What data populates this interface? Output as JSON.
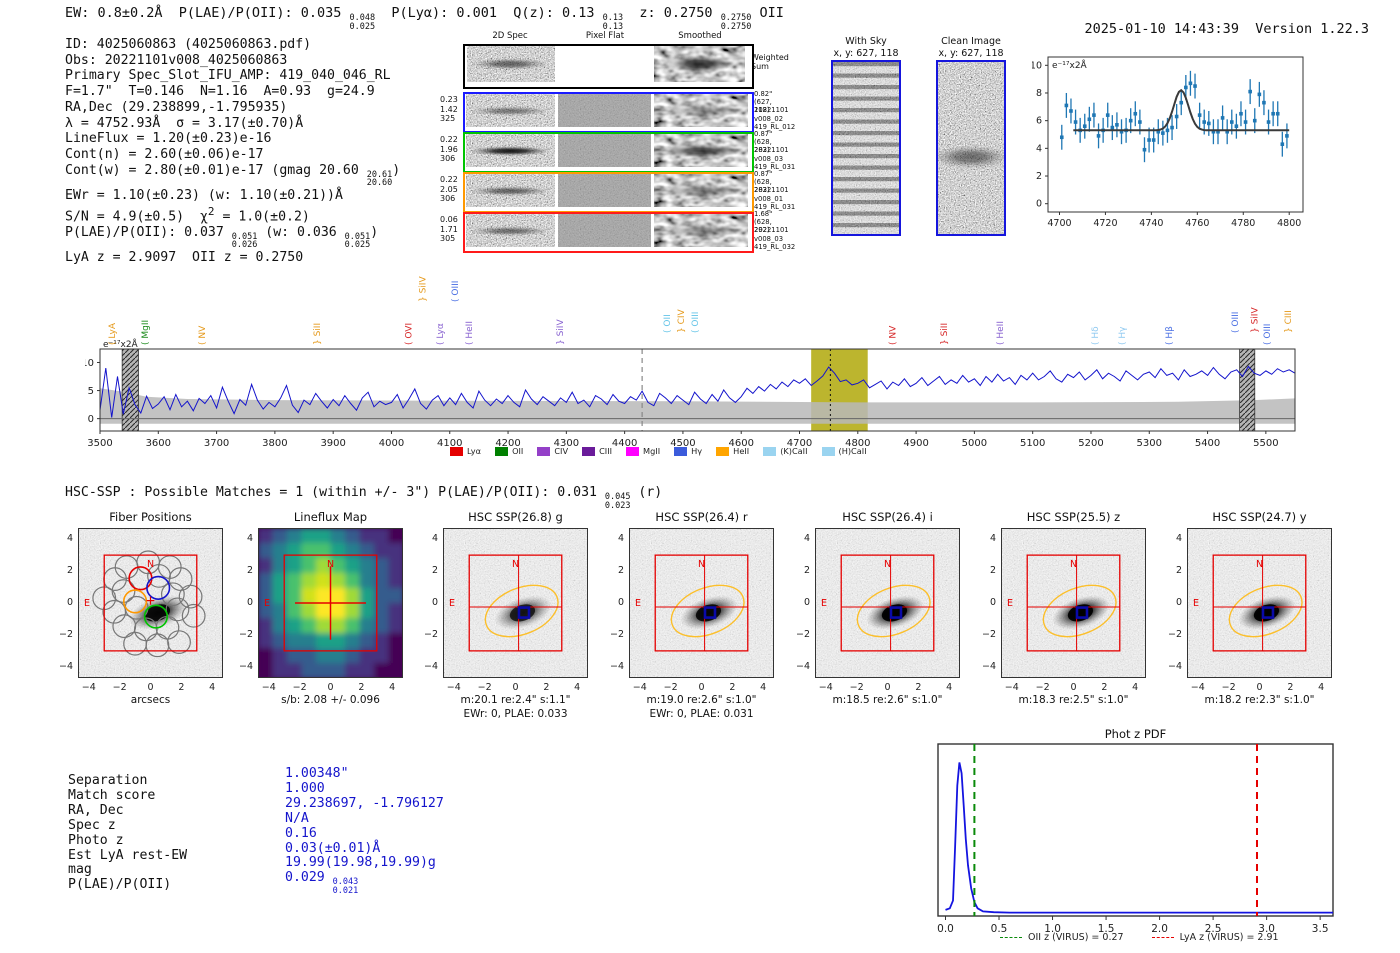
{
  "header": {
    "line_segments": [
      {
        "t": "EW: 0.8±0.2Å  P(LAE)/P(OII): 0.035 "
      },
      {
        "f": [
          "0.048",
          "0.025"
        ]
      },
      {
        "t": "  P(Lyα): 0.001  Q(z): 0.13 "
      },
      {
        "f": [
          "0.13",
          "0.13"
        ]
      },
      {
        "t": "  z: 0.2750 "
      },
      {
        "f": [
          "0.2750",
          "0.2750"
        ]
      },
      {
        "t": " OII"
      }
    ],
    "datetime": "2025-01-10 14:43:39",
    "version": "Version 1.22.3"
  },
  "info_lines": [
    [
      {
        "t": "ID: 4025060863 (4025060863.pdf)"
      }
    ],
    [
      {
        "t": "Obs: 20221101v008_4025060863"
      }
    ],
    [
      {
        "t": "Primary Spec_Slot_IFU_AMP: 419_040_046_RL"
      }
    ],
    [
      {
        "t": "F=1.7\"  T=0.146  N=1.16  A=0.93  g=24.9"
      }
    ],
    [
      {
        "t": "RA,Dec (29.238899,-1.795935)"
      }
    ],
    [
      {
        "t": "λ = 4752.93Å  σ = 3.17(±0.70)Å"
      }
    ],
    [
      {
        "t": "LineFlux = 1.20(±0.23)e-16"
      }
    ],
    [
      {
        "t": "Cont(n) = 2.60(±0.06)e-17"
      }
    ],
    [
      {
        "t": "Cont(w) = 2.80(±0.01)e-17 (gmag 20.60 "
      },
      {
        "f": [
          "20.61",
          "20.60"
        ]
      },
      {
        "t": ")"
      }
    ],
    [
      {
        "t": "EWr = 1.10(±0.23) (w: 1.10(±0.21))Å"
      }
    ],
    [
      {
        "t": "S/N = 4.9(±0.5)  χ"
      },
      {
        "s": "2"
      },
      {
        "t": " = 1.0(±0.2)"
      }
    ],
    [
      {
        "t": "P(LAE)/P(OII): 0.037 "
      },
      {
        "f": [
          "0.051",
          "0.026"
        ]
      },
      {
        "t": " (w: 0.036 "
      },
      {
        "f": [
          "0.051",
          "0.025"
        ]
      },
      {
        "t": ")"
      }
    ],
    [
      {
        "t": "LyA z = 2.9097  OII z = 0.2750"
      }
    ]
  ],
  "spec2d": {
    "col_headers": [
      "2D Spec",
      "Pixel Flat",
      "Smoothed"
    ],
    "weighted_sum_label": "Weighted Sum",
    "rows": [
      {
        "border": "#1a1aff",
        "left": [
          "0.23",
          "1.42",
          "325"
        ],
        "right": [
          "0.82\"",
          "(627, 118)",
          "20221101",
          "v008_02",
          "419_RL_012"
        ]
      },
      {
        "border": "#00c400",
        "left": [
          "0.22",
          "1.96",
          "306"
        ],
        "right": [
          "0.87\"",
          "(628, 283)",
          "20221101",
          "v008_03",
          "419_RL_031"
        ]
      },
      {
        "border": "#ff9800",
        "left": [
          "0.22",
          "2.05",
          "306"
        ],
        "right": [
          "0.87\"",
          "(628, 283)",
          "20221101",
          "v008_01",
          "419_RL_031"
        ]
      },
      {
        "border": "#ff1a1a",
        "left": [
          "0.06",
          "1.71",
          "305"
        ],
        "right": [
          "1.68\"",
          "(628, 292)",
          "20221101",
          "v008_03",
          "419_RL_032"
        ]
      }
    ]
  },
  "sky_panels": [
    {
      "title": "With Sky",
      "subtitle": "x, y: 627, 118",
      "style": "stripes"
    },
    {
      "title": "Clean Image",
      "subtitle": "x, y: 627, 118",
      "style": "noise"
    }
  ],
  "chart_data": [
    {
      "id": "line_fit_inset",
      "type": "scatter",
      "title": "",
      "ylabel": "e⁻¹⁷x2Å",
      "x_start": 4701,
      "x_step": 2,
      "values": [
        4.8,
        7.1,
        6.7,
        5.9,
        5.3,
        5.6,
        6.1,
        6.4,
        4.9,
        5.3,
        6.4,
        5.5,
        5.7,
        5.2,
        5.3,
        6.0,
        6.5,
        5.9,
        3.9,
        4.6,
        4.6,
        5.2,
        5.1,
        5.3,
        5.5,
        6.3,
        7.3,
        8.4,
        8.7,
        8.5,
        6.4,
        5.9,
        5.8,
        5.2,
        5.2,
        6.2,
        5.2,
        5.9,
        5.6,
        6.5,
        5.9,
        8.1,
        6.0,
        7.9,
        7.3,
        5.9,
        6.5,
        6.5,
        4.3,
        4.9
      ],
      "yerr": 0.9,
      "fit": {
        "center": 4752.93,
        "sigma": 3.2,
        "base": 5.3,
        "amp": 2.9
      },
      "xticks": [
        4700,
        4720,
        4740,
        4760,
        4780,
        4800
      ],
      "yticks": [
        0,
        2,
        4,
        6,
        8,
        10
      ],
      "xlim": [
        4695,
        4806
      ],
      "ylim": [
        -0.6,
        10.6
      ]
    },
    {
      "id": "full_spectrum",
      "type": "line",
      "ylabel": "e⁻¹⁷x2Å",
      "x_start": 3500,
      "x_step": 10,
      "values": [
        1.5,
        9.0,
        0.2,
        7.5,
        0.8,
        5.5,
        2.5,
        1.0,
        4.0,
        1.8,
        2.6,
        3.9,
        1.6,
        4.3,
        2.1,
        3.1,
        1.4,
        3.6,
        2.7,
        4.1,
        1.9,
        5.6,
        3.1,
        0.9,
        3.4,
        2.4,
        6.1,
        3.3,
        1.7,
        2.9,
        2.1,
        3.7,
        5.9,
        2.4,
        1.1,
        3.3,
        2.5,
        4.5,
        3.1,
        1.9,
        3.4,
        2.3,
        4.1,
        2.7,
        1.5,
        3.7,
        4.7,
        2.1,
        3.1,
        2.5,
        2.9,
        4.3,
        1.9,
        3.5,
        5.3,
        2.7,
        1.7,
        3.3,
        4.1,
        2.3,
        3.7,
        2.5,
        4.5,
        2.9,
        1.9,
        4.9,
        3.3,
        2.3,
        3.5,
        2.7,
        4.1,
        2.9,
        2.1,
        5.1,
        3.5,
        2.5,
        3.9,
        3.1,
        2.3,
        3.7,
        2.9,
        4.7,
        2.7,
        3.3,
        2.1,
        4.1,
        3.5,
        2.5,
        4.3,
        3.1,
        2.7,
        3.9,
        3.3,
        4.9,
        2.9,
        2.3,
        4.5,
        3.7,
        2.7,
        4.1,
        3.3,
        2.5,
        4.7,
        3.5,
        2.7,
        4.3,
        3.1,
        5.1,
        3.7,
        2.9,
        3.9,
        5.4,
        4.5,
        5.7,
        4.9,
        6.1,
        5.3,
        6.5,
        5.7,
        6.9,
        6.3,
        7.1,
        5.9,
        6.7,
        7.6,
        9.2,
        8.1,
        6.6,
        6.9,
        6.0,
        6.3,
        6.9,
        5.5,
        6.1,
        6.7,
        5.3,
        6.5,
        5.9,
        7.1,
        5.7,
        6.3,
        7.3,
        5.9,
        6.7,
        7.5,
        6.1,
        6.9,
        6.3,
        7.7,
        6.5,
        7.1,
        5.9,
        7.5,
        6.5,
        7.9,
        6.7,
        7.3,
        6.1,
        7.7,
        6.9,
        8.1,
        6.9,
        7.5,
        8.5,
        7.1,
        6.5,
        7.9,
        7.3,
        8.3,
        6.9,
        7.7,
        8.7,
        7.1,
        8.1,
        7.5,
        6.7,
        8.5,
        7.7,
        6.9,
        7.9,
        8.3,
        7.3,
        8.9,
        7.7,
        8.1,
        6.9,
        8.7,
        7.5,
        7.9,
        8.5,
        7.7,
        9.1,
        7.9,
        7.1,
        8.3,
        8.7,
        7.5,
        9.3,
        8.1,
        7.7,
        8.5,
        7.9,
        8.9,
        8.3,
        8.7,
        8.1
      ],
      "err_upper": [
        [
          3500,
          5.4
        ],
        [
          3540,
          4.8
        ],
        [
          3580,
          3.9
        ],
        [
          3650,
          3.5
        ],
        [
          3800,
          3.3
        ],
        [
          4100,
          3.2
        ],
        [
          4500,
          3.1
        ],
        [
          4800,
          2.9
        ],
        [
          5100,
          2.9
        ],
        [
          5350,
          3.0
        ],
        [
          5480,
          3.3
        ],
        [
          5550,
          3.6
        ]
      ],
      "err_lower": -0.9,
      "xticks": [
        3500,
        3600,
        3700,
        3800,
        3900,
        4000,
        4100,
        4200,
        4300,
        4400,
        4500,
        4600,
        4700,
        4800,
        4900,
        5000,
        5100,
        5200,
        5300,
        5400,
        5500
      ],
      "yticks": [
        0,
        5,
        10
      ],
      "xlim": [
        3500,
        5550
      ],
      "ylim": [
        -2.2,
        12.4
      ],
      "highlight_band": [
        4720,
        4817
      ],
      "hatch_bands": [
        [
          3538,
          3566
        ],
        [
          5455,
          5481
        ]
      ],
      "dashed_vline": 4430,
      "dotted_vline": 4752.93,
      "line_labels": [
        {
          "wl": 3526,
          "text": "LyA",
          "c": "#e59a1d",
          "r": 0,
          "b": "("
        },
        {
          "wl": 3582,
          "text": "MgII",
          "c": "#1e8c1e",
          "r": 0,
          "b": "("
        },
        {
          "wl": 3680,
          "text": "NV",
          "c": "#e59a1d",
          "r": 0,
          "b": "("
        },
        {
          "wl": 3877,
          "text": "SiII",
          "c": "#e59a1d",
          "r": 0,
          "b": "}"
        },
        {
          "wl": 4034,
          "text": "OVI",
          "c": "#d62728",
          "r": 0,
          "b": "("
        },
        {
          "wl": 4058,
          "text": "SiIV",
          "c": "#e59a1d",
          "r": 2,
          "b": "}"
        },
        {
          "wl": 4088,
          "text": "Lyα",
          "c": "#8862d0",
          "r": 0,
          "b": "("
        },
        {
          "wl": 4114,
          "text": "OIII",
          "c": "#4a6fe3",
          "r": 2,
          "b": "("
        },
        {
          "wl": 4138,
          "text": "HeII",
          "c": "#8862d0",
          "r": 0,
          "b": "("
        },
        {
          "wl": 4294,
          "text": "SiIV",
          "c": "#8862d0",
          "r": 0,
          "b": "}"
        },
        {
          "wl": 4478,
          "text": "OII",
          "c": "#67c5e8",
          "r": 1,
          "b": "("
        },
        {
          "wl": 4502,
          "text": "CIV",
          "c": "#e59a1d",
          "r": 1,
          "b": "}"
        },
        {
          "wl": 4526,
          "text": "OIII",
          "c": "#67c5e8",
          "r": 1,
          "b": "("
        },
        {
          "wl": 4865,
          "text": "NV",
          "c": "#d62728",
          "r": 0,
          "b": "("
        },
        {
          "wl": 4953,
          "text": "SiII",
          "c": "#d62728",
          "r": 0,
          "b": "}"
        },
        {
          "wl": 5049,
          "text": "HeII",
          "c": "#8862d0",
          "r": 0,
          "b": "("
        },
        {
          "wl": 5212,
          "text": "Hδ",
          "c": "#8fc9f0",
          "r": 0,
          "b": "("
        },
        {
          "wl": 5258,
          "text": "Hγ",
          "c": "#8fc9f0",
          "r": 0,
          "b": "("
        },
        {
          "wl": 5339,
          "text": "Hβ",
          "c": "#4a6fe3",
          "r": 0,
          "b": "("
        },
        {
          "wl": 5452,
          "text": "OIII",
          "c": "#4a6fe3",
          "r": 1,
          "b": "("
        },
        {
          "wl": 5486,
          "text": "SiIV",
          "c": "#d62728",
          "r": 1,
          "b": "}"
        },
        {
          "wl": 5507,
          "text": "OIII",
          "c": "#4a6fe3",
          "r": 0,
          "b": "("
        },
        {
          "wl": 5543,
          "text": "CIII",
          "c": "#e59a1d",
          "r": 1,
          "b": "}"
        }
      ],
      "legend": [
        {
          "label": "Lyα",
          "color": "#e50000"
        },
        {
          "label": "OII",
          "color": "#008000"
        },
        {
          "label": "CIV",
          "color": "#9440c8"
        },
        {
          "label": "CIII",
          "color": "#6a1b9a"
        },
        {
          "label": "MgII",
          "color": "#ff00ff"
        },
        {
          "label": "Hγ",
          "color": "#3b5bdb"
        },
        {
          "label": "HeII",
          "color": "#ffa500"
        },
        {
          "label": "(K)CaII",
          "color": "#9ad4f0"
        },
        {
          "label": "(H)CaII",
          "color": "#9ad4f0"
        }
      ]
    },
    {
      "id": "phot_z_pdf",
      "type": "line",
      "title": "Phot z PDF",
      "points": [
        [
          0.0,
          0.04
        ],
        [
          0.04,
          0.05
        ],
        [
          0.07,
          0.1
        ],
        [
          0.09,
          0.45
        ],
        [
          0.11,
          0.85
        ],
        [
          0.13,
          1.0
        ],
        [
          0.15,
          0.93
        ],
        [
          0.17,
          0.72
        ],
        [
          0.19,
          0.5
        ],
        [
          0.21,
          0.33
        ],
        [
          0.24,
          0.18
        ],
        [
          0.27,
          0.09
        ],
        [
          0.3,
          0.05
        ],
        [
          0.35,
          0.03
        ],
        [
          0.45,
          0.025
        ],
        [
          0.6,
          0.022
        ],
        [
          1.0,
          0.022
        ],
        [
          1.5,
          0.022
        ],
        [
          2.0,
          0.022
        ],
        [
          2.5,
          0.022
        ],
        [
          3.0,
          0.022
        ],
        [
          3.62,
          0.022
        ]
      ],
      "xticks": [
        "0.0",
        "0.5",
        "1.0",
        "1.5",
        "2.0",
        "2.5",
        "3.0",
        "3.5"
      ],
      "xlim": [
        -0.07,
        3.62
      ],
      "ylim": [
        0,
        1.12
      ],
      "vlines": [
        {
          "x": 0.27,
          "color": "#0a8a0a",
          "label": "OII z (VIRUS) = 0.27"
        },
        {
          "x": 2.91,
          "color": "#e50000",
          "label": "LyA z (VIRUS) = 2.91"
        }
      ]
    }
  ],
  "hsc_header_segments": [
    {
      "t": "HSC-SSP : Possible Matches = 1 (within +/- 3\")  P(LAE)/P(OII): 0.031 "
    },
    {
      "f": [
        "0.045",
        "0.023"
      ]
    },
    {
      "t": " (r)"
    }
  ],
  "cutouts": {
    "yticks": [
      "4",
      "2",
      "0",
      "−2",
      "−4"
    ],
    "xticks": [
      "−4",
      "−2",
      "0",
      "2",
      "4"
    ],
    "compass_n": "N",
    "compass_e": "E",
    "panels": [
      {
        "kind": "fiber",
        "title": "Fiber Positions",
        "caption1": "arcsecs",
        "caption2": ""
      },
      {
        "kind": "lineflux",
        "title": "Lineflux Map",
        "caption1": "s/b: 2.08 +/- 0.096",
        "caption2": ""
      },
      {
        "kind": "hsc",
        "title": "HSC SSP(26.8) g",
        "caption1": "m:20.1  re:2.4\"  s:1.1\"",
        "caption2": "EWr: 0, PLAE: 0.033"
      },
      {
        "kind": "hsc",
        "title": "HSC SSP(26.4) r",
        "caption1": "m:19.0  re:2.6\"  s:1.0\"",
        "caption2": "EWr: 0, PLAE: 0.031"
      },
      {
        "kind": "hsc",
        "title": "HSC SSP(26.4) i",
        "caption1": "m:18.5  re:2.6\"  s:1.0\"",
        "caption2": ""
      },
      {
        "kind": "hsc",
        "title": "HSC SSP(25.5) z",
        "caption1": "m:18.3  re:2.5\"  s:1.0\"",
        "caption2": ""
      },
      {
        "kind": "hsc",
        "title": "HSC SSP(24.7) y",
        "caption1": "m:18.2  re:2.3\"  s:1.0\"",
        "caption2": ""
      }
    ]
  },
  "match_table": {
    "labels": [
      "Separation",
      "Match score",
      "RA, Dec",
      "Spec z",
      "Photo z",
      "Est LyA rest-EW",
      "mag",
      "P(LAE)/P(OII)"
    ],
    "values": [
      [
        {
          "t": "1.00348\""
        }
      ],
      [
        {
          "t": "1.000"
        }
      ],
      [
        {
          "t": "29.238697, -1.796127"
        }
      ],
      [
        {
          "t": "N/A"
        }
      ],
      [
        {
          "t": "0.16"
        }
      ],
      [
        {
          "t": "0.03(±0.01)Å"
        }
      ],
      [
        {
          "t": "19.99(19.98,19.99)g"
        }
      ],
      [
        {
          "t": "0.029 "
        },
        {
          "f": [
            "0.043",
            "0.021"
          ]
        }
      ]
    ]
  },
  "colors": {
    "spectrum_line": "#1414cc",
    "inset_points": "#1f77b4",
    "fit_line": "#3a3a3a",
    "highlight_band": "#b8b123",
    "error_band": "#b9b9b9",
    "accent_red": "#e50000",
    "accent_blue_border": "#1515dd",
    "value_text_blue": "#1414cc",
    "photz_curve": "#1414e0"
  }
}
